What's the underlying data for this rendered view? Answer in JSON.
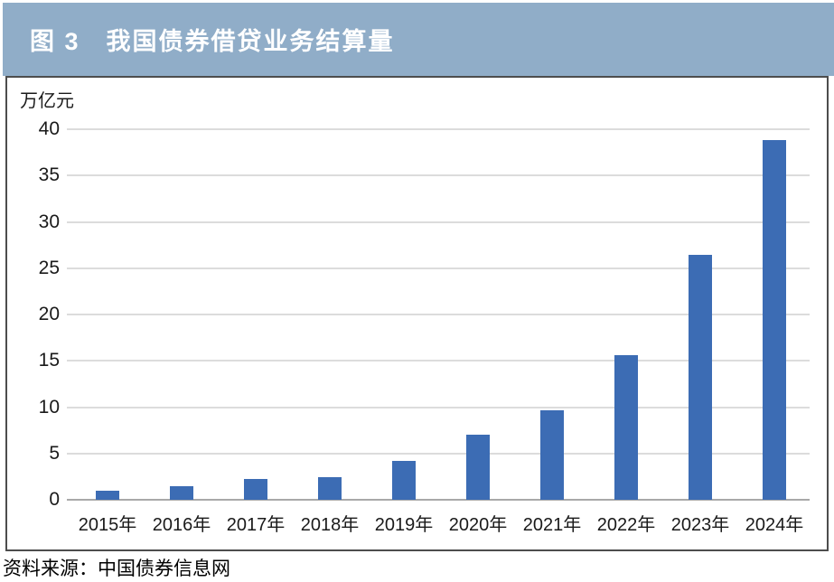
{
  "header": {
    "title": "图 3　我国债券借贷业务结算量"
  },
  "chart": {
    "unit": "万亿元"
  },
  "chart_data": {
    "type": "bar",
    "title": "图 3 我国债券借贷业务结算量",
    "categories": [
      "2015年",
      "2016年",
      "2017年",
      "2018年",
      "2019年",
      "2020年",
      "2021年",
      "2022年",
      "2023年",
      "2024年"
    ],
    "values": [
      1.0,
      1.5,
      2.2,
      2.4,
      4.2,
      7.0,
      9.7,
      15.6,
      26.4,
      38.8
    ],
    "xlabel": "",
    "ylabel": "万亿元",
    "ylim": [
      0,
      40
    ],
    "yticks": [
      0,
      5,
      10,
      15,
      20,
      25,
      30,
      35,
      40
    ],
    "grid": true,
    "legend_position": "none",
    "bar_color": "#3c6cb4"
  },
  "footer": {
    "source": "资料来源：中国债券信息网"
  },
  "colors": {
    "header_bg": "#90adc8",
    "title_text": "#ffffff",
    "panel_border": "#4d4d4d",
    "gridline": "#dcdcdc",
    "axis_line": "#a9a9a9",
    "bar": "#3c6cb4",
    "text": "#1a1a1a"
  }
}
